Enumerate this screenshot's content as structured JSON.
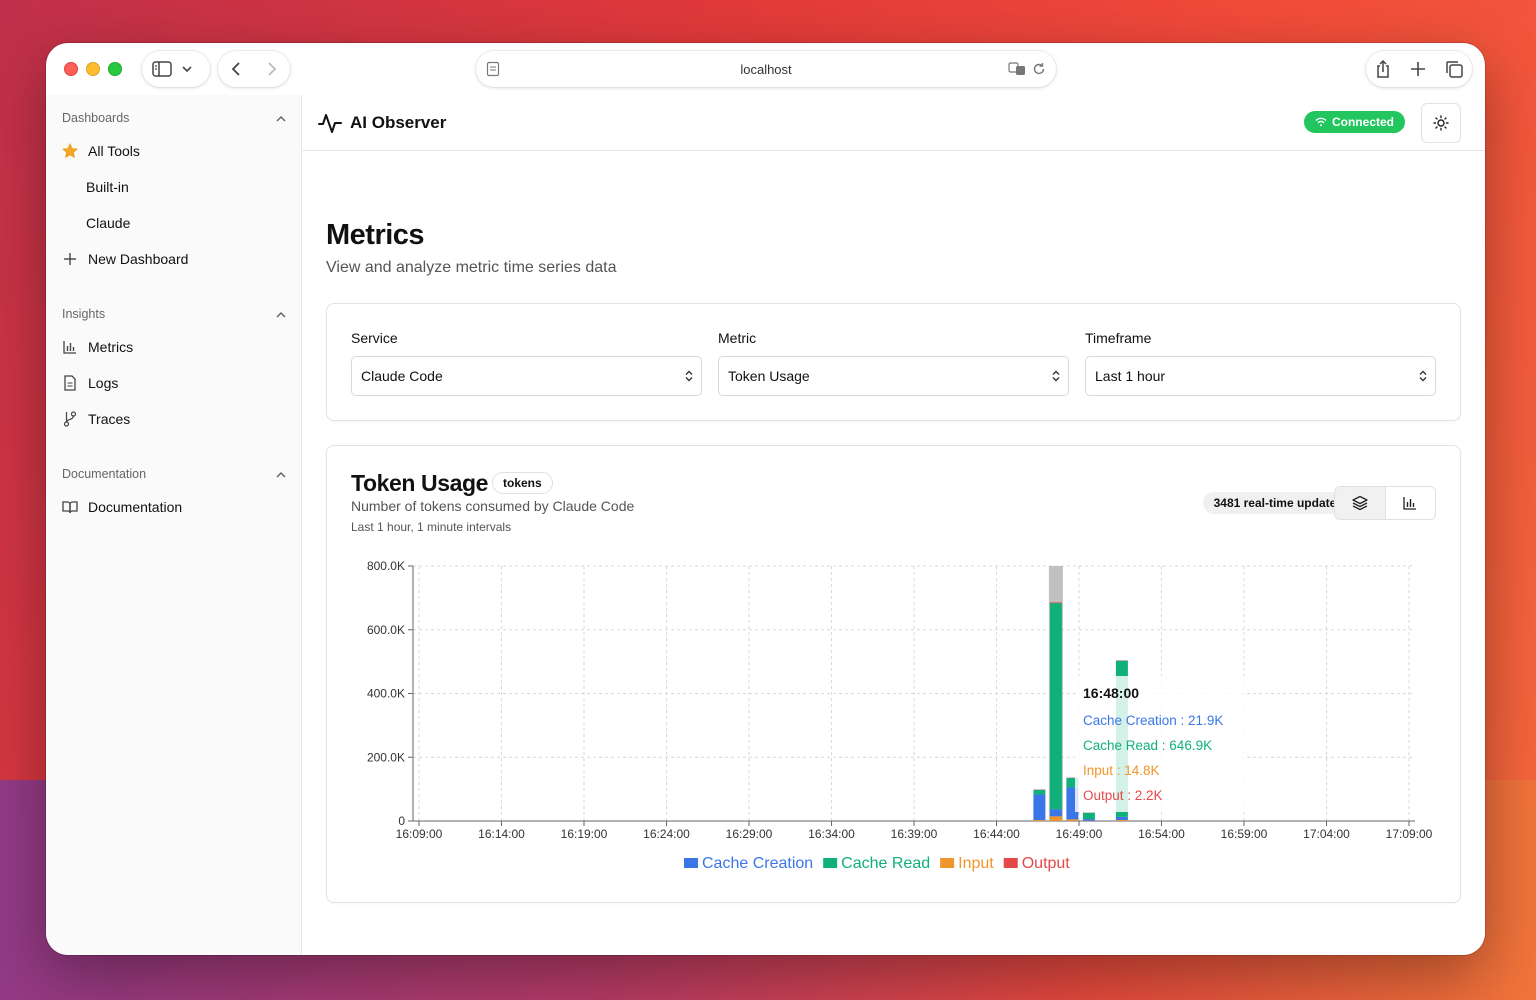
{
  "browser": {
    "url": "localhost"
  },
  "sidebar": {
    "sections": [
      {
        "title": "Dashboards",
        "items": [
          {
            "label": "All Tools",
            "icon": "star-icon"
          },
          {
            "label": "Built-in"
          },
          {
            "label": "Claude"
          },
          {
            "label": "New Dashboard",
            "icon": "plus-icon"
          }
        ]
      },
      {
        "title": "Insights",
        "items": [
          {
            "label": "Metrics",
            "icon": "bar-chart-icon"
          },
          {
            "label": "Logs",
            "icon": "file-text-icon"
          },
          {
            "label": "Traces",
            "icon": "git-branch-icon"
          }
        ]
      },
      {
        "title": "Documentation",
        "items": [
          {
            "label": "Documentation",
            "icon": "book-open-icon"
          }
        ]
      }
    ]
  },
  "header": {
    "app_name": "AI Observer",
    "status": "Connected",
    "status_color": "#22c55e"
  },
  "page": {
    "title": "Metrics",
    "subtitle": "View and analyze metric time series data"
  },
  "filters": {
    "service": {
      "label": "Service",
      "value": "Claude Code"
    },
    "metric": {
      "label": "Metric",
      "value": "Token Usage"
    },
    "timeframe": {
      "label": "Timeframe",
      "value": "Last 1 hour"
    }
  },
  "chart_card": {
    "title": "Token Usage",
    "unit": "tokens",
    "description": "Number of tokens consumed by Claude Code",
    "interval": "Last 1 hour, 1 minute intervals",
    "updates": "3481 real-time updates"
  },
  "chart_data": {
    "type": "bar",
    "stacked": true,
    "x_ticks": [
      "16:09:00",
      "16:14:00",
      "16:19:00",
      "16:24:00",
      "16:29:00",
      "16:34:00",
      "16:39:00",
      "16:44:00",
      "16:49:00",
      "16:54:00",
      "16:59:00",
      "17:04:00",
      "17:09:00"
    ],
    "y_ticks": [
      "0",
      "200.0K",
      "400.0K",
      "600.0K",
      "800.0K"
    ],
    "ylim": [
      0,
      800000
    ],
    "x_minute_range": [
      0,
      60
    ],
    "grid": true,
    "legend_position": "bottom",
    "series": [
      {
        "name": "Cache Creation",
        "color": "#3b76e8"
      },
      {
        "name": "Cache Read",
        "color": "#10b07a"
      },
      {
        "name": "Input",
        "color": "#f0952b"
      },
      {
        "name": "Output",
        "color": "#e54848"
      }
    ],
    "bars": [
      {
        "minute": 37.6,
        "values": [
          80000,
          15000,
          3000,
          1000
        ]
      },
      {
        "minute": 38.6,
        "values": [
          21900,
          646900,
          14800,
          2200
        ],
        "highlighted": true
      },
      {
        "minute": 39.6,
        "values": [
          100000,
          30000,
          5000,
          1000
        ]
      },
      {
        "minute": 40.6,
        "values": [
          5000,
          20000,
          1000,
          500
        ]
      },
      {
        "minute": 42.6,
        "values": [
          10000,
          490000,
          3000,
          1000
        ]
      }
    ],
    "tooltip": {
      "time": "16:48:00",
      "lines": [
        {
          "label": "Cache Creation : 21.9K",
          "color": "#3b76e8"
        },
        {
          "label": "Cache Read : 646.9K",
          "color": "#10b07a"
        },
        {
          "label": "Input : 14.8K",
          "color": "#f0952b"
        },
        {
          "label": "Output : 2.2K",
          "color": "#e54848"
        }
      ]
    }
  }
}
